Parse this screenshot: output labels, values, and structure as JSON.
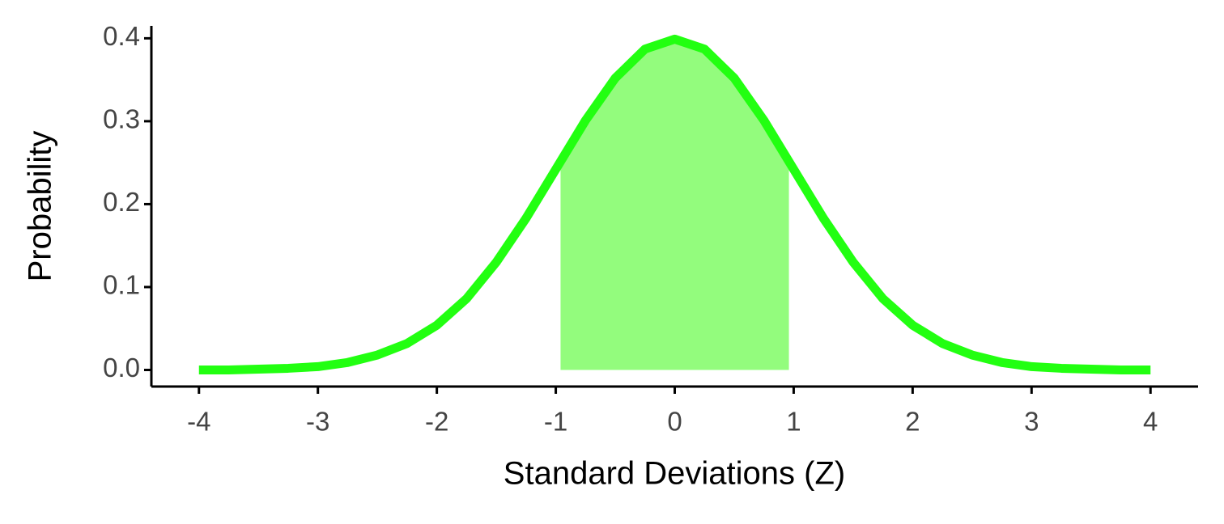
{
  "chart_data": {
    "type": "line",
    "x_label": "Standard Deviations (Z)",
    "y_label": "Probability",
    "xlim": [
      -4.4,
      4.4
    ],
    "xticks": [
      -4,
      -3,
      -2,
      -1,
      0,
      1,
      2,
      3,
      4
    ],
    "ylim": [
      -0.02,
      0.415
    ],
    "yticks": [
      {
        "value": 0,
        "label": "0.0"
      },
      0.1,
      0.2,
      0.3,
      0.4
    ],
    "grid": false,
    "series": [
      {
        "style": "area",
        "color": "#93fc7d",
        "x": [
          -0.96,
          -0.75,
          -0.5,
          -0.25,
          0,
          0.25,
          0.5,
          0.75,
          0.96
        ],
        "values": [
          0.252,
          0.301,
          0.352,
          0.387,
          0.399,
          0.387,
          0.352,
          0.301,
          0.252
        ]
      },
      {
        "style": "line",
        "color": "#22ff11",
        "x": [
          -4,
          -3.75,
          -3.5,
          -3.25,
          -3,
          -2.75,
          -2.5,
          -2.25,
          -2,
          -1.75,
          -1.5,
          -1.25,
          -1,
          -0.75,
          -0.5,
          -0.25,
          0,
          0.25,
          0.5,
          0.75,
          1,
          1.25,
          1.5,
          1.75,
          2,
          2.25,
          2.5,
          2.75,
          3,
          3.25,
          3.5,
          3.75,
          4
        ],
        "values": [
          0.0,
          0.0,
          0.001,
          0.002,
          0.004,
          0.009,
          0.018,
          0.032,
          0.054,
          0.086,
          0.13,
          0.183,
          0.242,
          0.301,
          0.352,
          0.387,
          0.399,
          0.387,
          0.352,
          0.301,
          0.242,
          0.183,
          0.13,
          0.086,
          0.054,
          0.032,
          0.018,
          0.009,
          0.004,
          0.002,
          0.001,
          0.0,
          0.0
        ]
      }
    ]
  }
}
